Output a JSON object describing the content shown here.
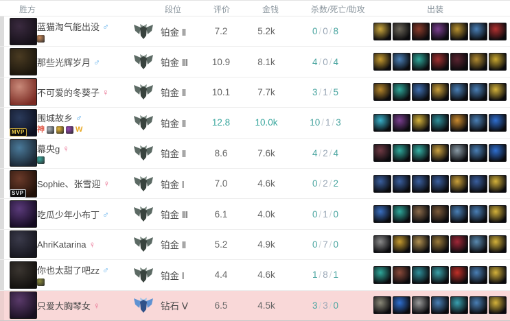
{
  "table_title": "match-result-winning-team",
  "accent": {
    "teal": "#3aa79e",
    "kill_color": "#4aa5a0",
    "death_color": "#98a6b5",
    "assist_color": "#4aa5a0",
    "highlight_row_bg": "#f9d8d8",
    "platinum_emblem": "#5c6a64",
    "diamond_emblem": "#5f92d2",
    "male_color": "#4da6e8",
    "female_color": "#e8668a"
  },
  "header": {
    "columns": [
      "胜方",
      "段位",
      "评价",
      "金钱",
      "杀数/死亡/助攻",
      "出装"
    ]
  },
  "rows": [
    {
      "name": "蓝猫淘气能出没",
      "gender": "♂",
      "avatar_badge": "",
      "avatar_colors": [
        "#3a2a3f",
        "#151018"
      ],
      "badges": [
        {
          "name": "bronze-fist-badge",
          "style": "tile",
          "color": "#c98a5a",
          "glyph": ""
        }
      ],
      "rank_tier": "platinum",
      "rank": "铂金 Ⅱ",
      "rating": "7.2",
      "rating_highlight": false,
      "gold": "5.2k",
      "gold_highlight": false,
      "kda": {
        "k": "0",
        "d": "0",
        "a": "8"
      },
      "items": [
        "#caa63d",
        "#6b6558",
        "#8a3b2a",
        "#7a3f8f",
        "#b8912f",
        "#4a7fb5",
        "#b03030"
      ]
    },
    {
      "name": "那些光辉岁月",
      "gender": "♂",
      "avatar_badge": "",
      "avatar_colors": [
        "#4a3b22",
        "#1a150c"
      ],
      "badges": [],
      "rank_tier": "platinum",
      "rank": "铂金 Ⅲ",
      "rating": "10.9",
      "rating_highlight": false,
      "gold": "8.1k",
      "gold_highlight": false,
      "kda": {
        "k": "4",
        "d": "0",
        "a": "4"
      },
      "items": [
        "#c59a2f",
        "#4a7fb5",
        "#2fa79a",
        "#a03030",
        "#5a2430",
        "#b08a30",
        "#c9a72f"
      ]
    },
    {
      "name": "不可爱的冬葵子",
      "gender": "♀",
      "avatar_badge": "",
      "avatar_colors": [
        "#c98a7a",
        "#7a2a22"
      ],
      "badges": [],
      "rank_tier": "platinum",
      "rank": "铂金 Ⅱ",
      "rating": "10.1",
      "rating_highlight": false,
      "gold": "7.7k",
      "gold_highlight": false,
      "kda": {
        "k": "3",
        "d": "1",
        "a": "5"
      },
      "items": [
        "#b5862b",
        "#2fa79a",
        "#3f6fb0",
        "#caa03a",
        "#4a7fb5",
        "#4a7fb5",
        "#d4b23a"
      ]
    },
    {
      "name": "围城故乡",
      "gender": "♂",
      "avatar_badge": "MVP",
      "avatar_colors": [
        "#2a3a5a",
        "#0d1020"
      ],
      "badges": [
        {
          "name": "shen-badge",
          "style": "text",
          "color": "#e05a4a",
          "glyph": "神"
        },
        {
          "name": "claw-badge",
          "style": "tile",
          "color": "#b0b8c0",
          "glyph": ""
        },
        {
          "name": "coin-badge",
          "style": "tile",
          "color": "#e8b93a",
          "glyph": ""
        },
        {
          "name": "gem-badge",
          "style": "tile",
          "color": "#9a4ab8",
          "glyph": ""
        },
        {
          "name": "crown-badge",
          "style": "text",
          "color": "#e8a825",
          "glyph": "W"
        }
      ],
      "rank_tier": "platinum",
      "rank": "铂金 Ⅱ",
      "rating": "12.8",
      "rating_highlight": true,
      "gold": "10.0k",
      "gold_highlight": true,
      "kda": {
        "k": "10",
        "d": "1",
        "a": "3"
      },
      "items": [
        "#39b0c9",
        "#7a3f8f",
        "#d4b23a",
        "#2f8f9a",
        "#c98a2f",
        "#4a7fb5",
        "#2f6fd0"
      ]
    },
    {
      "name": "幕央g",
      "gender": "♀",
      "avatar_badge": "",
      "avatar_colors": [
        "#4a7a9a",
        "#1a2430"
      ],
      "badges": [
        {
          "name": "teal-badge",
          "style": "tile",
          "color": "#3aa9a0",
          "glyph": ""
        }
      ],
      "rank_tier": "platinum",
      "rank": "铂金 Ⅱ",
      "rating": "8.6",
      "rating_highlight": false,
      "gold": "7.6k",
      "gold_highlight": false,
      "kda": {
        "k": "4",
        "d": "2",
        "a": "4"
      },
      "items": [
        "#6e3a44",
        "#2fa79a",
        "#35b0a5",
        "#c9a040",
        "#8a9aa5",
        "#4a7fb5",
        "#2f6fd0"
      ]
    },
    {
      "name": "Sophie、张雪迎",
      "gender": "♀",
      "avatar_badge": "SVP",
      "avatar_colors": [
        "#6a3a2a",
        "#201008"
      ],
      "badges": [],
      "rank_tier": "platinum",
      "rank": "铂金 Ⅰ",
      "rating": "7.0",
      "rating_highlight": false,
      "gold": "4.6k",
      "gold_highlight": false,
      "kda": {
        "k": "0",
        "d": "2",
        "a": "2"
      },
      "items": [
        "#3a5f9e",
        "#3a5f9e",
        "#3a5f9e",
        "#3a5f9e",
        "#caa03a",
        "#3a5f9e",
        "#d4b23a"
      ]
    },
    {
      "name": "吃瓜少年小布丁",
      "gender": "♂",
      "avatar_badge": "",
      "avatar_colors": [
        "#5a3a7a",
        "#140a20"
      ],
      "badges": [],
      "rank_tier": "platinum",
      "rank": "铂金 Ⅲ",
      "rating": "6.1",
      "rating_highlight": false,
      "gold": "4.0k",
      "gold_highlight": false,
      "kda": {
        "k": "0",
        "d": "1",
        "a": "0"
      },
      "items": [
        "#3a6fc0",
        "#2fa79a",
        "#8a6a4a",
        "#7a5a3a",
        "#4a7fb5",
        "#4a7fb5",
        "#d4b23a"
      ]
    },
    {
      "name": "AhriKatarina",
      "gender": "♀",
      "avatar_badge": "",
      "avatar_colors": [
        "#3a3a4a",
        "#15151d"
      ],
      "badges": [],
      "rank_tier": "platinum",
      "rank": "铂金 Ⅱ",
      "rating": "5.2",
      "rating_highlight": false,
      "gold": "4.9k",
      "gold_highlight": false,
      "kda": {
        "k": "0",
        "d": "7",
        "a": "0"
      },
      "items": [
        "#8a8a8a",
        "#c59a2f",
        "#b09050",
        "#9a7a3a",
        "#a02838",
        "#5a8ab0",
        "#d4b23a"
      ]
    },
    {
      "name": "你也太甜了吧zz",
      "gender": "♂",
      "avatar_badge": "",
      "avatar_colors": [
        "#3a3530",
        "#12100d"
      ],
      "badges": [
        {
          "name": "shield-badge",
          "style": "tile",
          "color": "#8a8a3a",
          "glyph": ""
        }
      ],
      "rank_tier": "platinum",
      "rank": "铂金 Ⅰ",
      "rating": "4.4",
      "rating_highlight": false,
      "gold": "4.6k",
      "gold_highlight": false,
      "kda": {
        "k": "1",
        "d": "8",
        "a": "1"
      },
      "items": [
        "#2fa79a",
        "#8a4a3a",
        "#2f8f9a",
        "#3aa0a8",
        "#c03028",
        "#4a7fb5",
        "#d4b23a"
      ]
    },
    {
      "name": "只爱大胸琴女",
      "gender": "♀",
      "avatar_badge": "",
      "avatar_colors": [
        "#5a3a6a",
        "#180f20"
      ],
      "badges": [],
      "rank_tier": "diamond",
      "rank": "钻石 Ⅴ",
      "rating": "6.5",
      "rating_highlight": false,
      "gold": "4.5k",
      "gold_highlight": false,
      "kda": {
        "k": "3",
        "d": "3",
        "a": "0"
      },
      "items": [
        "#8a8878",
        "#2f6fd0",
        "#9a9a9a",
        "#4a7fb5",
        "#3aa0b0",
        "#4a7fb5",
        "#d4b23a"
      ],
      "row_highlight": true
    }
  ]
}
